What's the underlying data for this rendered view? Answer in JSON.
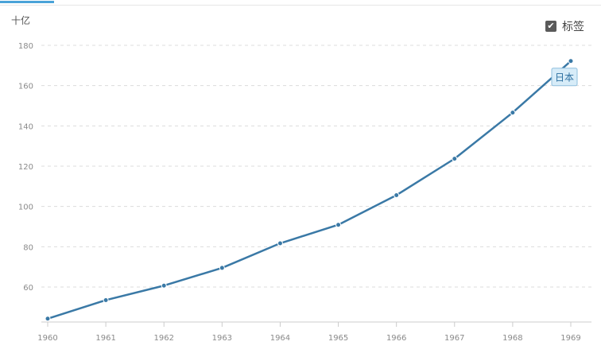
{
  "unit_label": "十亿",
  "legend_toggle": {
    "label": "标签",
    "checked": true
  },
  "colors": {
    "line": "#3a79a6",
    "grid": "#dcdcdc",
    "tick": "#8a8a8a",
    "accent": "#4aa3d8"
  },
  "icons": {
    "checkbox": "check-icon"
  },
  "chart_data": {
    "type": "line",
    "x": [
      1960,
      1961,
      1962,
      1963,
      1964,
      1965,
      1966,
      1967,
      1968,
      1969
    ],
    "series": [
      {
        "name": "日本",
        "values": [
          44.3,
          53.5,
          60.7,
          69.5,
          81.7,
          90.9,
          105.6,
          123.7,
          146.6,
          172.2
        ]
      }
    ],
    "ylim": [
      40,
      180
    ],
    "yticks": [
      60,
      80,
      100,
      120,
      140,
      160,
      180
    ],
    "ylabel": "十亿",
    "grid": "dashed-horizontal",
    "legend": "top-right"
  }
}
